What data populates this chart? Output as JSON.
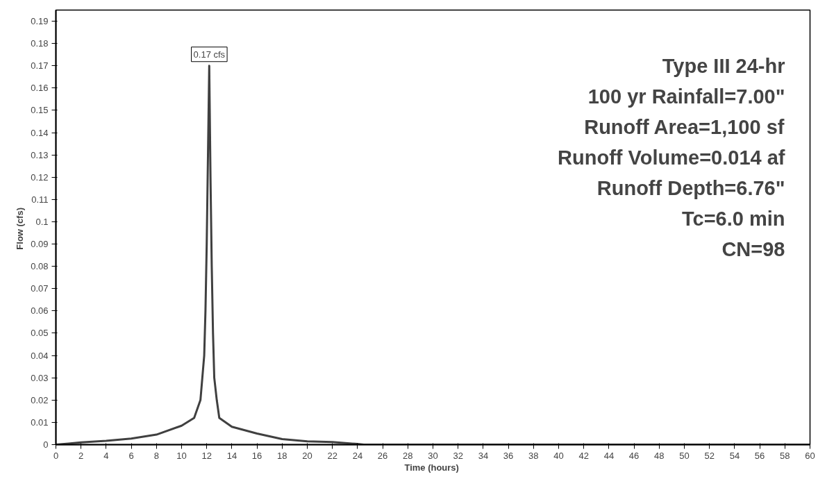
{
  "chart_data": {
    "type": "line",
    "xlabel": "Time  (hours)",
    "ylabel": "Flow  (cfs)",
    "x": [
      0,
      1,
      2,
      4,
      6,
      8,
      10,
      11,
      11.5,
      11.8,
      11.9,
      12.0,
      12.1,
      12.2,
      12.3,
      12.4,
      12.5,
      12.6,
      12.8,
      13,
      14,
      16,
      18,
      20,
      22,
      24,
      24.5,
      30,
      40,
      50,
      60
    ],
    "series": [
      {
        "color": "#404040",
        "values": [
          0,
          0.0005,
          0.001,
          0.0017,
          0.0027,
          0.0045,
          0.0085,
          0.012,
          0.02,
          0.04,
          0.06,
          0.09,
          0.13,
          0.17,
          0.12,
          0.08,
          0.05,
          0.03,
          0.02,
          0.012,
          0.008,
          0.005,
          0.0025,
          0.0015,
          0.0012,
          0.0003,
          0,
          0,
          0,
          0,
          0
        ]
      }
    ],
    "xlim": [
      0,
      60
    ],
    "ylim": [
      0,
      0.195
    ],
    "xticks": [
      0,
      2,
      4,
      6,
      8,
      10,
      12,
      14,
      16,
      18,
      20,
      22,
      24,
      26,
      28,
      30,
      32,
      34,
      36,
      38,
      40,
      42,
      44,
      46,
      48,
      50,
      52,
      54,
      56,
      58,
      60
    ],
    "yticks": [
      0,
      0.01,
      0.02,
      0.03,
      0.04,
      0.05,
      0.06,
      0.07,
      0.08,
      0.09,
      0.1,
      0.11,
      0.12,
      0.13,
      0.14,
      0.15,
      0.16,
      0.17,
      0.18,
      0.19
    ],
    "grid": false,
    "marker": "none",
    "line_style": "solid",
    "annotations": [
      {
        "text": "0.17 cfs",
        "x": 12.2,
        "y": 0.17
      },
      "Type III 24-hr",
      "100 yr Rainfall=7.00\"",
      "Runoff Area=1,100 sf",
      "Runoff Volume=0.014 af",
      "Runoff Depth=6.76\"",
      "Tc=6.0 min",
      "CN=98"
    ]
  }
}
